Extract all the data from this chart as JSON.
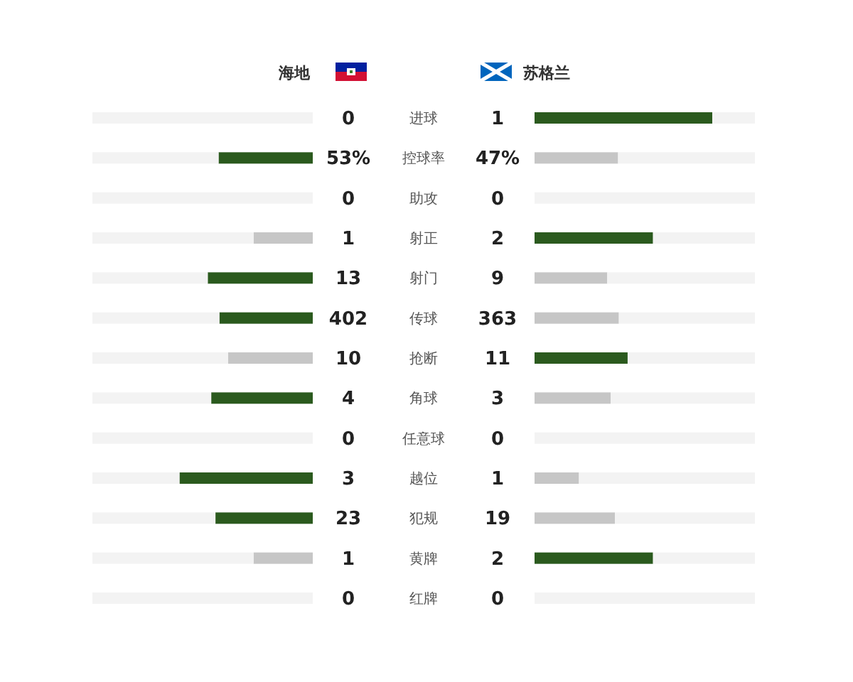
{
  "chart_data": {
    "type": "other",
    "categories": [
      "进球",
      "控球率",
      "助攻",
      "射正",
      "射门",
      "传球",
      "抢断",
      "角球",
      "任意球",
      "越位",
      "犯规",
      "黄牌",
      "红牌"
    ],
    "series": [
      {
        "name": "海地",
        "colors": [
          "#c6c6c6",
          "#2b5a1e",
          "#c6c6c6",
          "#c6c6c6",
          "#2b5a1e",
          "#2b5a1e",
          "#c6c6c6",
          "#2b5a1e",
          "#c6c6c6",
          "#2b5a1e",
          "#2b5a1e",
          "#c6c6c6",
          "#c6c6c6"
        ],
        "values": [
          0,
          53,
          0,
          1,
          13,
          402,
          10,
          4,
          0,
          3,
          23,
          1,
          0
        ],
        "value_labels": [
          "0",
          "53%",
          "0",
          "1",
          "13",
          "402",
          "10",
          "4",
          "0",
          "3",
          "23",
          "1",
          "0"
        ]
      },
      {
        "name": "苏格兰",
        "colors": [
          "#2b5a1e",
          "#c6c6c6",
          "#c6c6c6",
          "#2b5a1e",
          "#c6c6c6",
          "#c6c6c6",
          "#2b5a1e",
          "#c6c6c6",
          "#c6c6c6",
          "#c6c6c6",
          "#c6c6c6",
          "#2b5a1e",
          "#c6c6c6"
        ],
        "values": [
          1,
          47,
          0,
          2,
          9,
          363,
          11,
          3,
          0,
          1,
          19,
          2,
          0
        ],
        "value_labels": [
          "1",
          "47%",
          "0",
          "2",
          "9",
          "363",
          "11",
          "3",
          "0",
          "1",
          "19",
          "2",
          "0"
        ]
      }
    ]
  }
}
